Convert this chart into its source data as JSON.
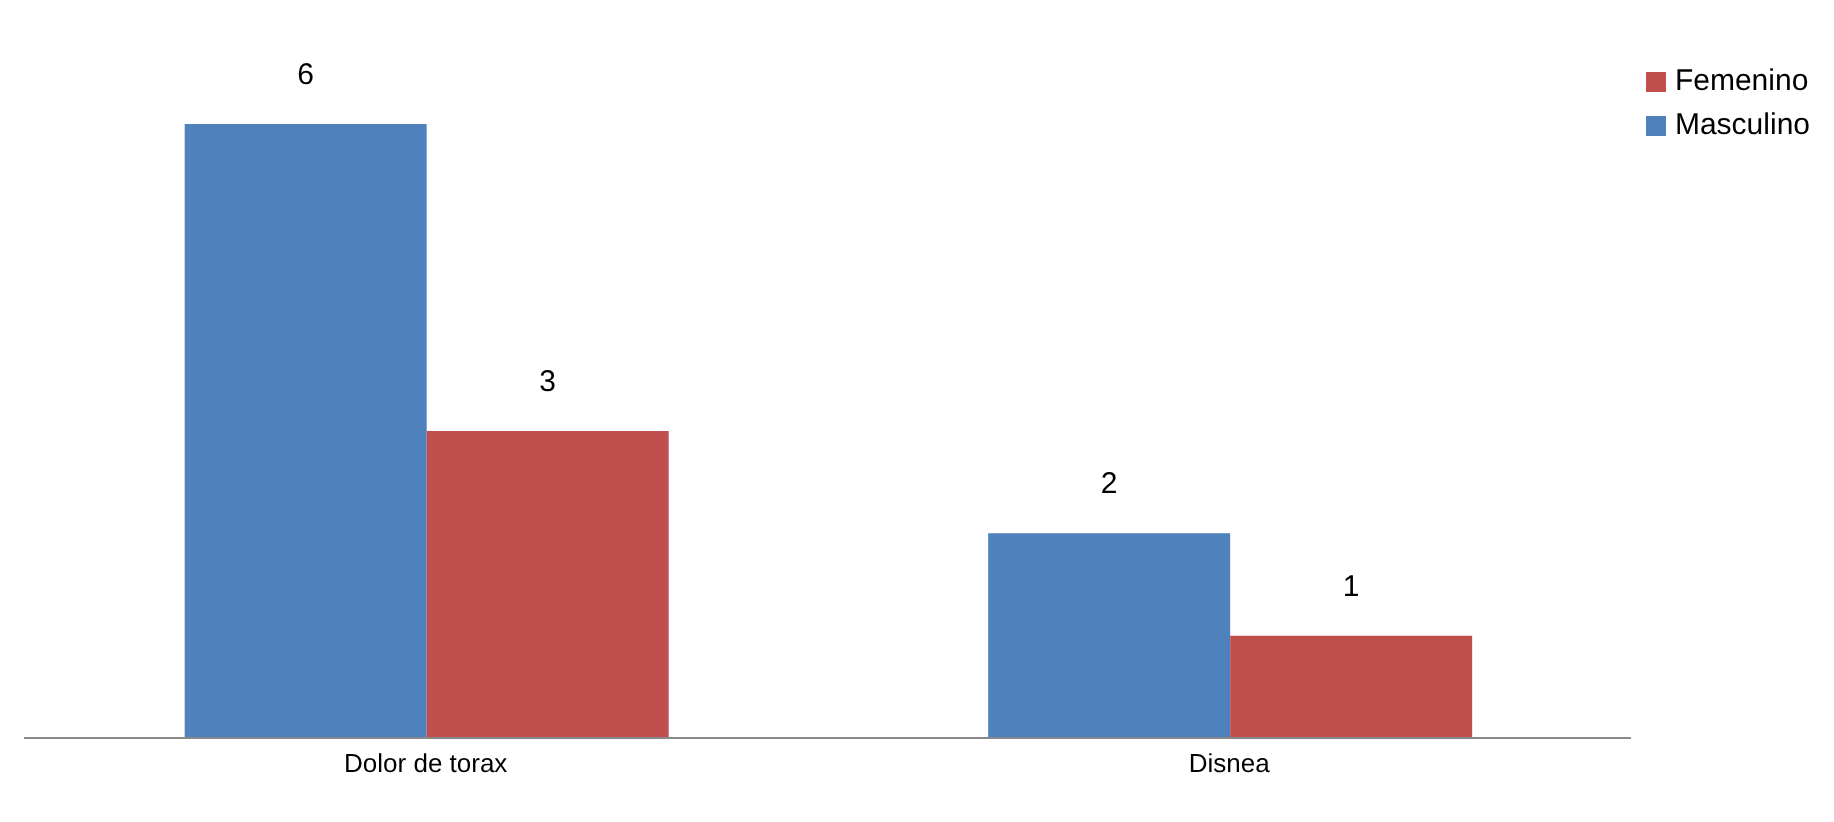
{
  "chart_data": {
    "type": "bar",
    "categories": [
      "Dolor de torax",
      "Disnea"
    ],
    "series": [
      {
        "name": "Masculino",
        "color": "#4f81bd",
        "values": [
          6,
          2
        ]
      },
      {
        "name": "Femenino",
        "color": "#c0504d",
        "values": [
          3,
          1
        ]
      }
    ],
    "data_labels": true,
    "legend": "top right",
    "grid": false
  }
}
